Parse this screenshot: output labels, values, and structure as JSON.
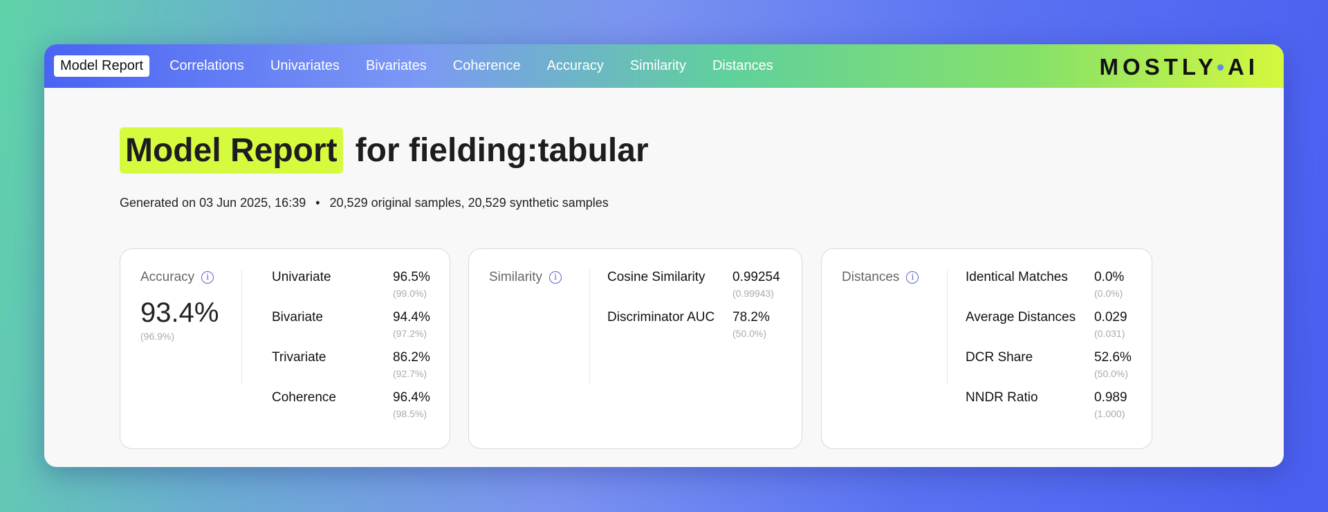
{
  "nav": {
    "items": [
      "Model Report",
      "Correlations",
      "Univariates",
      "Bivariates",
      "Coherence",
      "Accuracy",
      "Similarity",
      "Distances"
    ],
    "logo": "MOSTLY AI"
  },
  "header": {
    "title_highlight": "Model Report",
    "title_rest": "for fielding:tabular",
    "generated": "Generated on 03 Jun 2025, 16:39",
    "bullet": "•",
    "samples": "20,529 original samples, 20,529 synthetic samples"
  },
  "cards": [
    {
      "label": "Accuracy",
      "value": "93.4%",
      "ref": "(96.9%)",
      "metrics": [
        {
          "name": "Univariate",
          "value": "96.5%",
          "ref": "(99.0%)"
        },
        {
          "name": "Bivariate",
          "value": "94.4%",
          "ref": "(97.2%)"
        },
        {
          "name": "Trivariate",
          "value": "86.2%",
          "ref": "(92.7%)"
        },
        {
          "name": "Coherence",
          "value": "96.4%",
          "ref": "(98.5%)"
        }
      ]
    },
    {
      "label": "Similarity",
      "metrics": [
        {
          "name": "Cosine Similarity",
          "value": "0.99254",
          "ref": "(0.99943)"
        },
        {
          "name": "Discriminator AUC",
          "value": "78.2%",
          "ref": "(50.0%)"
        }
      ]
    },
    {
      "label": "Distances",
      "metrics": [
        {
          "name": "Identical Matches",
          "value": "0.0%",
          "ref": "(0.0%)"
        },
        {
          "name": "Average Distances",
          "value": "0.029",
          "ref": "(0.031)"
        },
        {
          "name": "DCR Share",
          "value": "52.6%",
          "ref": "(50.0%)"
        },
        {
          "name": "NNDR Ratio",
          "value": "0.989",
          "ref": "(1.000)"
        }
      ]
    }
  ],
  "info_icon": "i",
  "colors": {
    "highlight": "#d6fb3e",
    "info": "#5c60c8"
  }
}
